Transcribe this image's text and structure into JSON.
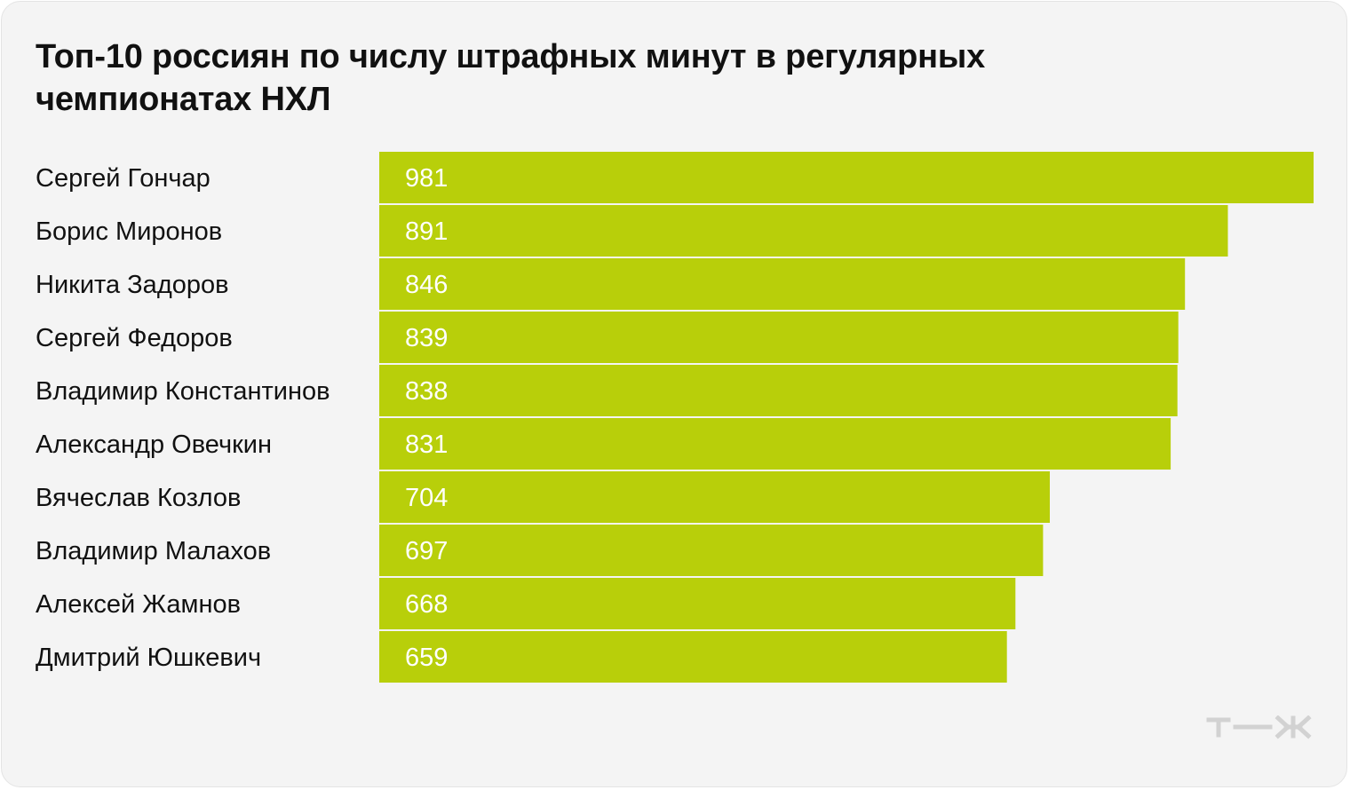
{
  "title": "Топ-10 россиян по числу штрафных минут в регулярных чемпионатах НХЛ",
  "colors": {
    "background": "#f4f4f4",
    "bar": "#b8cf0a",
    "bar_label": "#ffffff",
    "category_label": "#111111",
    "logo": "#d2d2d2"
  },
  "logo": {
    "icon": "tzh-logo-icon",
    "text": "т—ж"
  },
  "chart_data": {
    "type": "bar",
    "orientation": "horizontal",
    "title": "Топ-10 россиян по числу штрафных минут в регулярных чемпионатах НХЛ",
    "categories": [
      "Сергей Гончар",
      "Борис Миронов",
      "Никита Задоров",
      "Сергей Федоров",
      "Владимир Константинов",
      "Александр Овечкин",
      "Вячеслав Козлов",
      "Владимир Малахов",
      "Алексей Жамнов",
      "Дмитрий Юшкевич"
    ],
    "values": [
      981,
      891,
      846,
      839,
      838,
      831,
      704,
      697,
      668,
      659
    ],
    "xlim": [
      0,
      981
    ],
    "data_labels": true,
    "grid": false,
    "legend": "none",
    "xlabel": "",
    "ylabel": ""
  }
}
